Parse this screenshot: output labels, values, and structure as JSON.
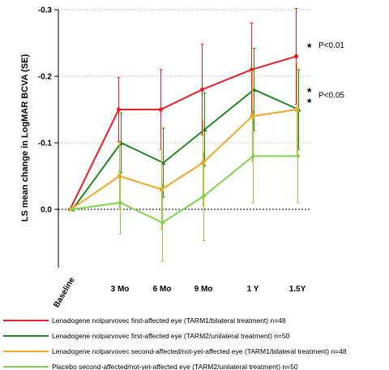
{
  "chart_data": {
    "type": "line",
    "title": "",
    "xlabel": "",
    "ylabel": "LS mean change in LogMAR BCVA (SE)",
    "categories": [
      "Baseline",
      "3 Mo",
      "6 Mo",
      "9 Mo",
      "1 Y",
      "1.5Y"
    ],
    "y_axis": {
      "min": -0.3,
      "max": 0.085,
      "inverted": true,
      "ticks": [
        -0.3,
        -0.2,
        -0.1,
        0.0
      ],
      "tick_labels": [
        "-0.3",
        "-0.2",
        "-0.1",
        "0.0"
      ],
      "gridlines": "dotted"
    },
    "series": [
      {
        "name": "Lenadogene nolparvovec first-affected eye (TARM1/bilateral treatment) n=48",
        "color": "#ee1c24",
        "marker": "circle",
        "values": [
          0.0,
          -0.15,
          -0.15,
          -0.18,
          -0.21,
          -0.23
        ],
        "se": [
          0,
          0.048,
          0.06,
          0.068,
          0.07,
          0.072
        ]
      },
      {
        "name": "Lenadogene nolparvovec first-affected eye (TARM2/unilateral treatment) n=50",
        "color": "#1e8a1e",
        "marker": "triangle",
        "values": [
          0.0,
          -0.1,
          -0.07,
          -0.12,
          -0.18,
          -0.15
        ],
        "se": [
          0,
          0.045,
          0.052,
          0.055,
          0.062,
          0.06
        ]
      },
      {
        "name": "Lenadogene nolparvovec second-affected/not-yet-affected eye (TARM1/bilateral treatment) n=48",
        "color": "#f5a623",
        "marker": "square",
        "values": [
          0.0,
          -0.05,
          -0.03,
          -0.07,
          -0.14,
          -0.15
        ],
        "se": [
          0,
          0.05,
          0.06,
          0.065,
          0.068,
          0.07
        ]
      },
      {
        "name": "Placebo second-affected/not-yet-affected eye (TARM2/unilateral treatment) n=50",
        "color": "#7fd34a",
        "marker": "diamond",
        "values": [
          0.0,
          -0.01,
          0.02,
          -0.02,
          -0.08,
          -0.08
        ],
        "se": [
          0,
          0.047,
          0.058,
          0.067,
          0.07,
          0.07
        ]
      }
    ],
    "annotations": [
      {
        "text": "P<0.01",
        "stars": 1,
        "at": {
          "category": "1.5Y",
          "y": -0.245
        }
      },
      {
        "text": "P<0.05",
        "stars": 2,
        "at": {
          "category": "1.5Y",
          "y": -0.17
        }
      }
    ],
    "legend_position": "bottom"
  }
}
